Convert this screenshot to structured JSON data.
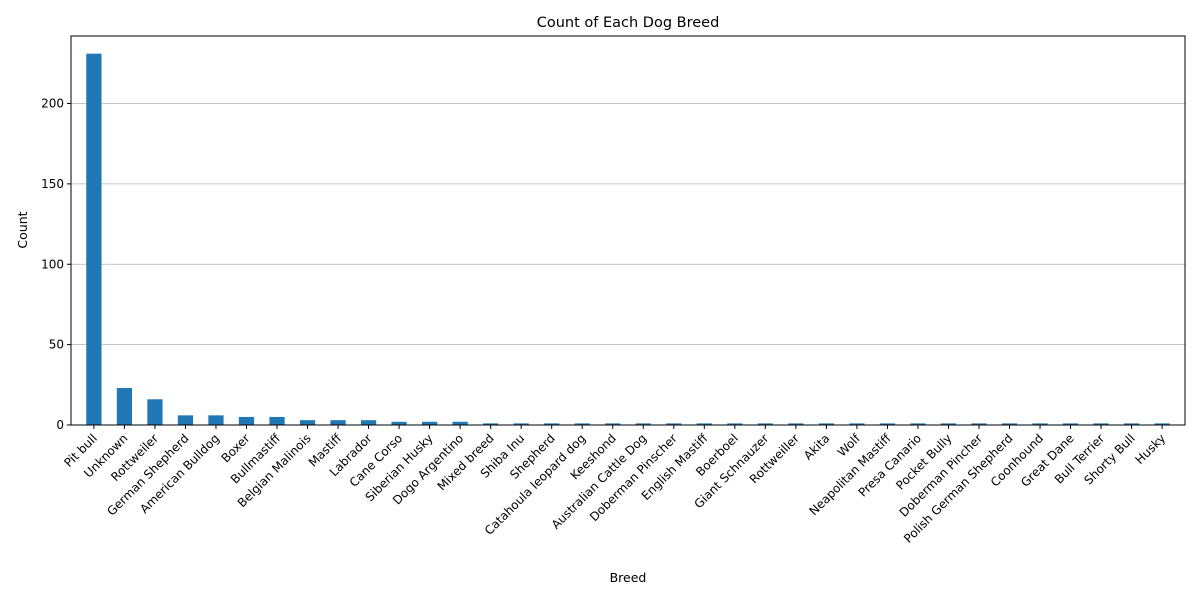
{
  "chart_data": {
    "type": "bar",
    "title": "Count of Each Dog Breed",
    "xlabel": "Breed",
    "ylabel": "Count",
    "ylim": [
      0,
      242
    ],
    "yticks": [
      0,
      50,
      100,
      150,
      200
    ],
    "grid": "y",
    "color": "#1f77b4",
    "categories": [
      "Pit bull",
      "Unknown",
      "Rottweiler",
      "German Shepherd",
      "American Bulldog",
      "Boxer",
      "Bullmastiff",
      "Belgian Malinois",
      "Mastiff",
      "Labrador",
      "Cane Corso",
      "Siberian Husky",
      "Dogo Argentino",
      "Mixed breed",
      "Shiba Inu",
      "Shepherd",
      "Catahoula leopard dog",
      "Keeshond",
      "Australian Cattle Dog",
      "Doberman Pinscher",
      "English Mastiff",
      "Boerboel",
      "Giant Schnauzer",
      "Rottweiller",
      "Akita",
      "Wolf",
      "Neapolitan Mastiff",
      "Presa Canario",
      "Pocket Bully",
      "Doberman Pincher",
      "Polish German Shepherd",
      "Coonhound",
      "Great Dane",
      "Bull Terrier",
      "Shorty Bull",
      "Husky"
    ],
    "values": [
      231,
      23,
      16,
      6,
      6,
      5,
      5,
      3,
      3,
      3,
      2,
      2,
      2,
      1,
      1,
      1,
      1,
      1,
      1,
      1,
      1,
      1,
      1,
      1,
      1,
      1,
      1,
      1,
      1,
      1,
      1,
      1,
      1,
      1,
      1,
      1
    ]
  }
}
